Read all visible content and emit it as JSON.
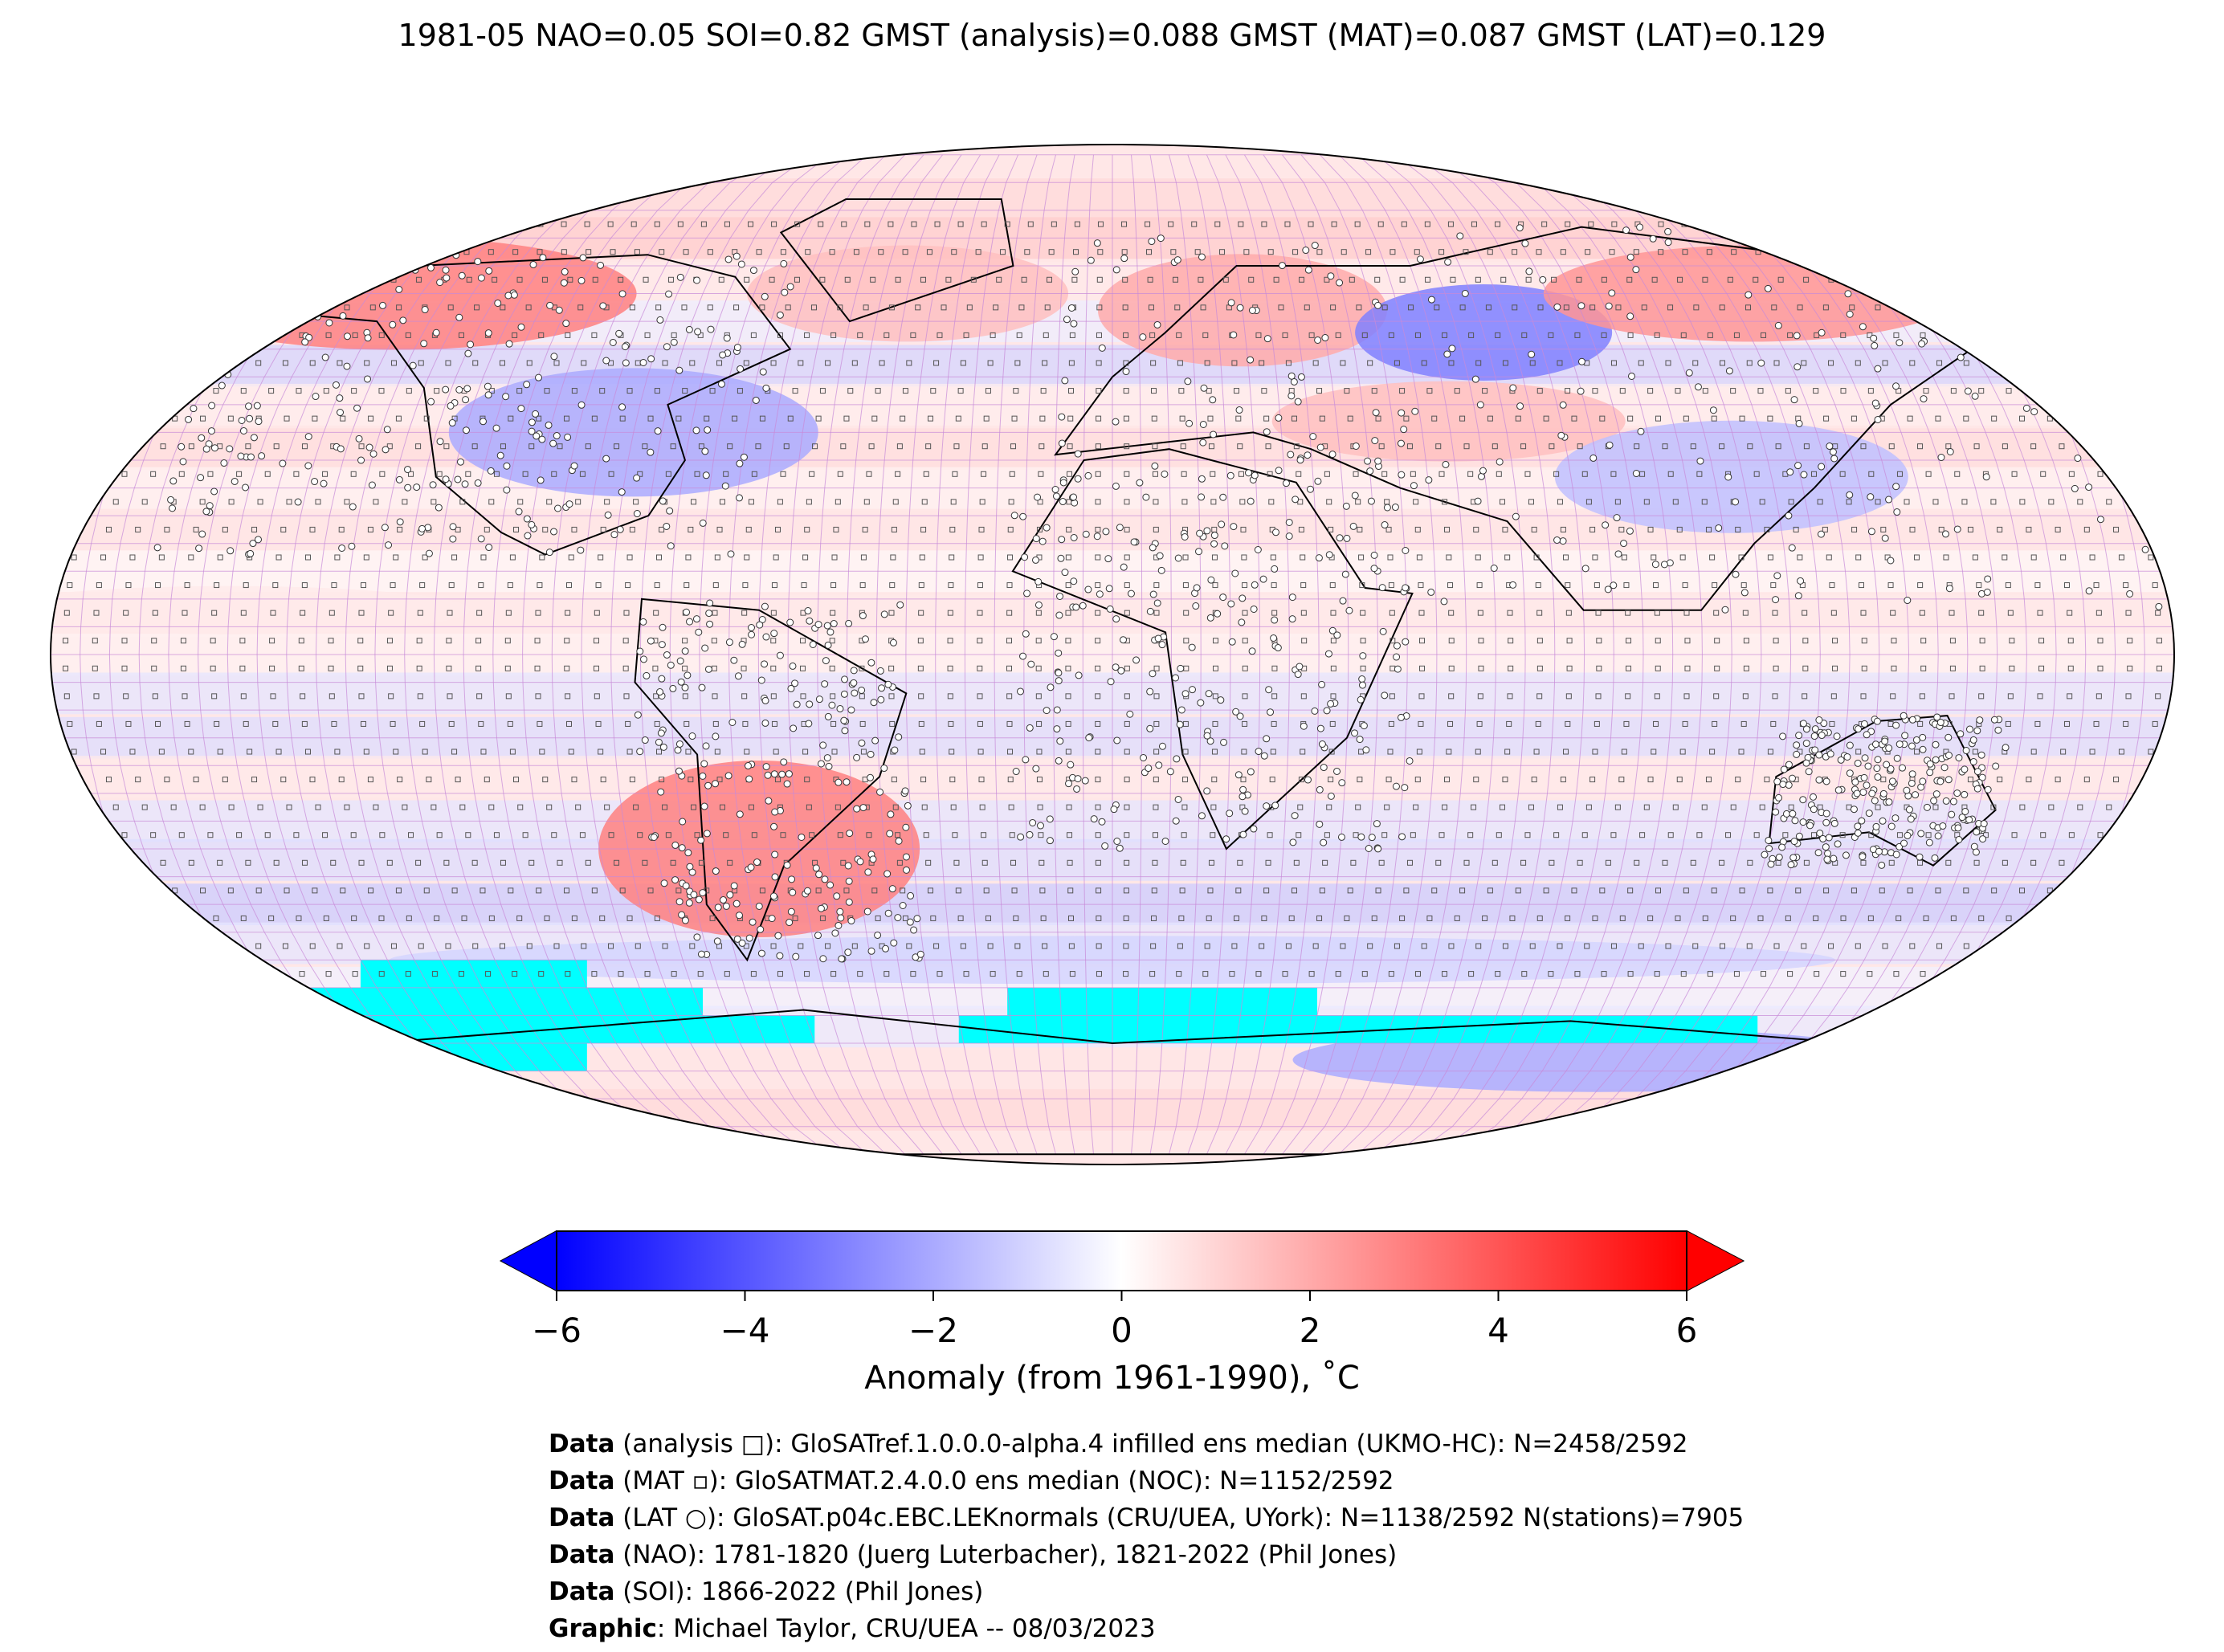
{
  "title": "1981-05 NAO=0.05 SOI=0.82 GMST (analysis)=0.088 GMST (MAT)=0.087 GMST (LAT)=0.129",
  "colorbar": {
    "min": -6,
    "max": 6,
    "ticks": [
      "−6",
      "−4",
      "−2",
      "0",
      "2",
      "4",
      "6"
    ],
    "label": "Anomaly (from 1961-1990), ˚C",
    "cmap": [
      "#0000ff",
      "#ffffff",
      "#ff0000"
    ],
    "extend": "both"
  },
  "map": {
    "projection": "Robinson",
    "grid_resolution": "5x5 degree",
    "missing_color": "#00ffff",
    "markers": {
      "analysis": "square-outline",
      "MAT": "small-square",
      "LAT": "circle"
    },
    "regional_anomalies": [
      {
        "region": "Alaska/NW Canada",
        "anomaly": 3.0
      },
      {
        "region": "Eastern North America",
        "anomaly": -2.0
      },
      {
        "region": "Greenland / North Atlantic",
        "anomaly": 1.5
      },
      {
        "region": "Scandinavia / NW Russia",
        "anomaly": 2.0
      },
      {
        "region": "West Siberia",
        "anomaly": -3.0
      },
      {
        "region": "East Siberia",
        "anomaly": 2.5
      },
      {
        "region": "Central Asia",
        "anomaly": 1.5
      },
      {
        "region": "China",
        "anomaly": -1.5
      },
      {
        "region": "Southern South America",
        "anomaly": 3.0
      },
      {
        "region": "Tropical Pacific",
        "anomaly": 0.5
      },
      {
        "region": "Southern Ocean",
        "anomaly": -1.0
      },
      {
        "region": "East Antarctica",
        "anomaly": -2.0
      }
    ]
  },
  "credits": [
    {
      "bold": "Data",
      "text": " (analysis □): GloSATref.1.0.0.0-alpha.4 infilled ens median (UKMO-HC): N=2458/2592"
    },
    {
      "bold": "Data",
      "text": " (MAT ▫): GloSATMAT.2.4.0.0 ens median (NOC): N=1152/2592"
    },
    {
      "bold": "Data",
      "text": " (LAT ○): GloSAT.p04c.EBC.LEKnormals (CRU/UEA, UYork): N=1138/2592 N(stations)=7905"
    },
    {
      "bold": "Data",
      "text": " (NAO): 1781-1820 (Juerg Luterbacher), 1821-2022 (Phil Jones)"
    },
    {
      "bold": "Data",
      "text": " (SOI): 1866-2022 (Phil Jones)"
    },
    {
      "bold": "Graphic",
      "text": ": Michael Taylor, CRU/UEA -- 08/03/2023"
    }
  ]
}
